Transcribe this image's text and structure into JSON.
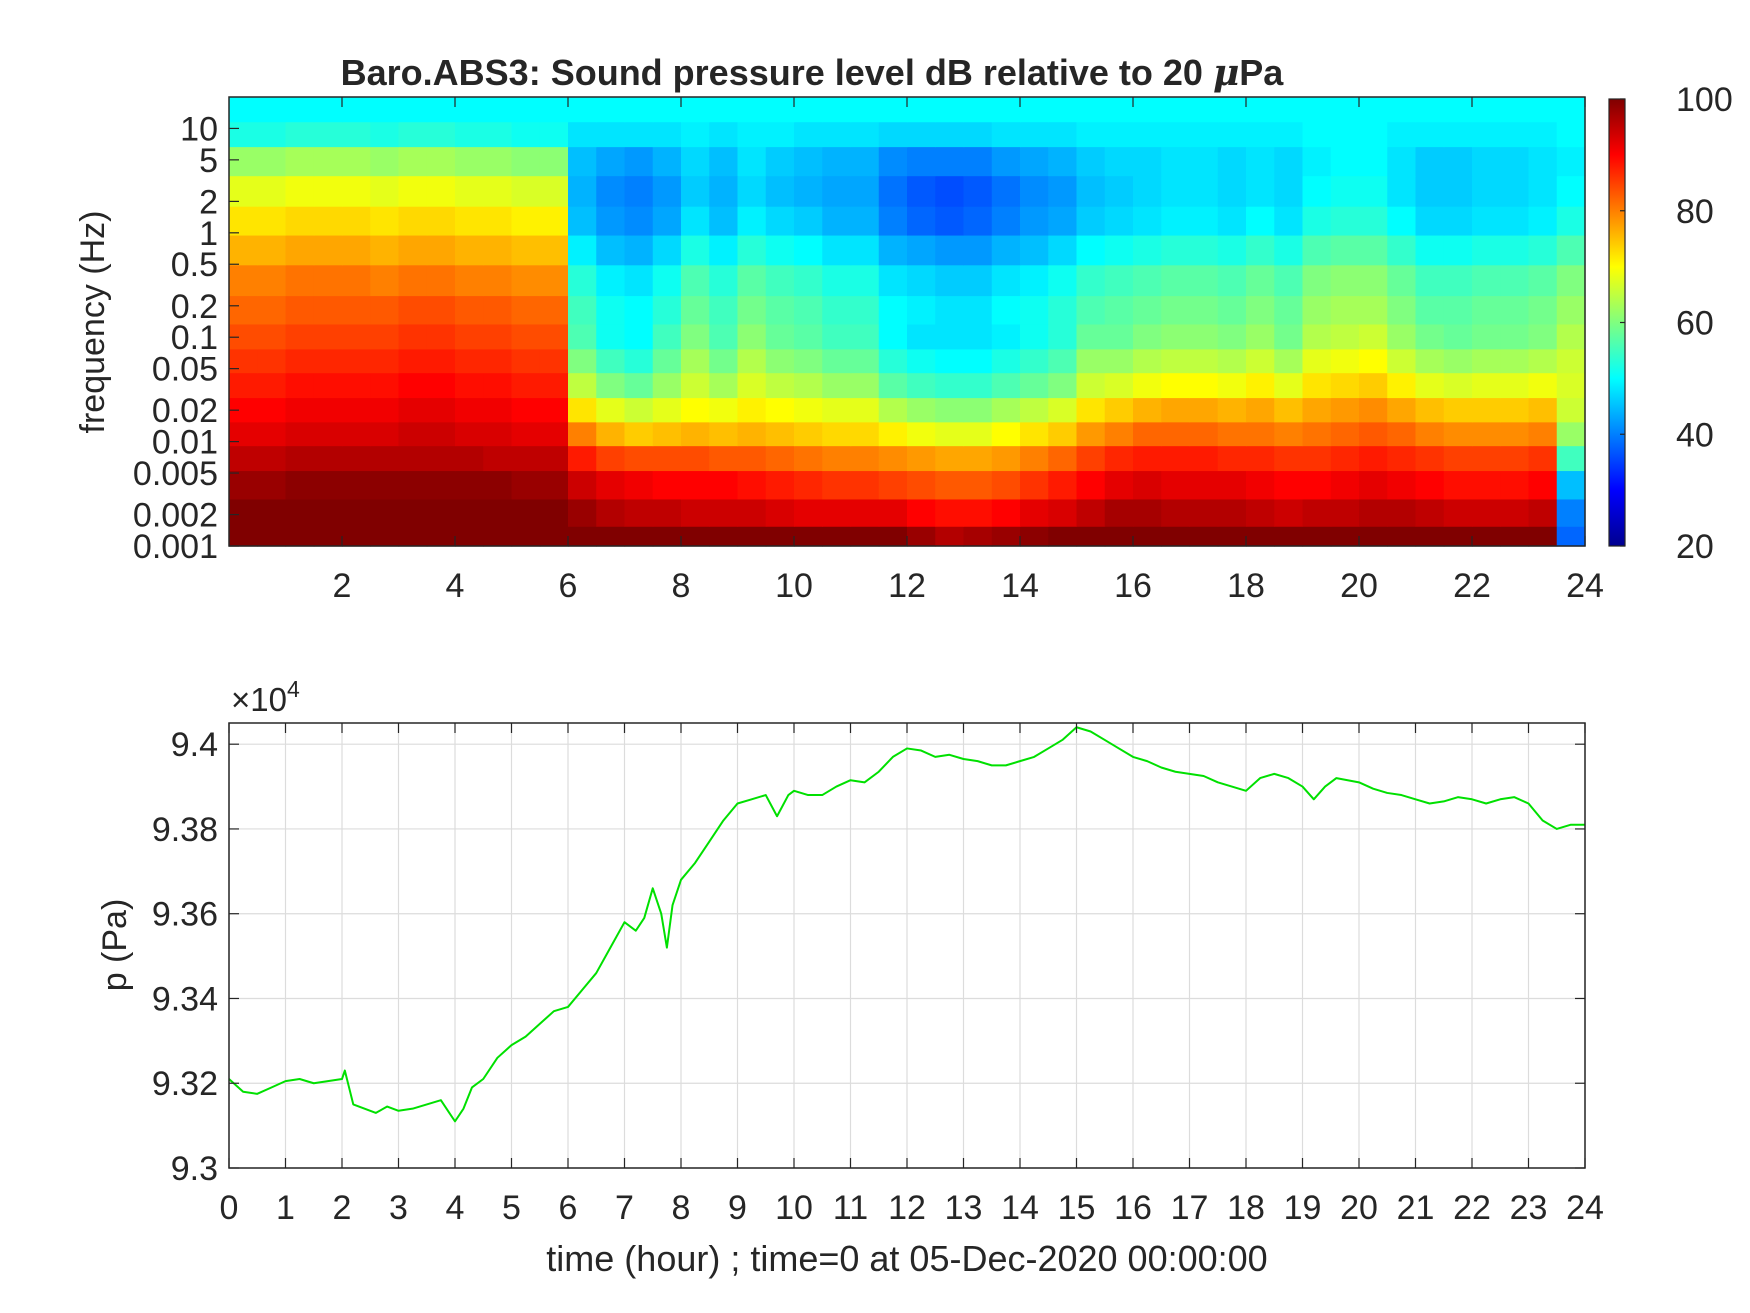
{
  "chart_data": [
    {
      "type": "heatmap",
      "title": "Baro.ABS3: Sound pressure level dB relative to 20 ",
      "title_symbol": "μ",
      "title_suffix": "Pa",
      "xlabel": "",
      "ylabel": "frequency (Hz)",
      "xlim": [
        0,
        24
      ],
      "ylim": [
        0.001,
        20
      ],
      "yscale": "log",
      "x_ticks": [
        2,
        4,
        6,
        8,
        10,
        12,
        14,
        16,
        18,
        20,
        22,
        24
      ],
      "y_ticks": [
        {
          "value": 0.001,
          "label": "0.001"
        },
        {
          "value": 0.002,
          "label": "0.002"
        },
        {
          "value": 0.005,
          "label": "0.005"
        },
        {
          "value": 0.01,
          "label": "0.01"
        },
        {
          "value": 0.02,
          "label": "0.02"
        },
        {
          "value": 0.05,
          "label": "0.05"
        },
        {
          "value": 0.1,
          "label": "0.1"
        },
        {
          "value": 0.2,
          "label": "0.2"
        },
        {
          "value": 0.5,
          "label": "0.5"
        },
        {
          "value": 1,
          "label": "1"
        },
        {
          "value": 2,
          "label": "2"
        },
        {
          "value": 5,
          "label": "5"
        },
        {
          "value": 10,
          "label": "10"
        }
      ],
      "colormap": "jet",
      "clim": [
        20,
        100
      ],
      "colorbar_ticks": [
        20,
        40,
        60,
        80,
        100
      ],
      "frequency_rows_hz": [
        0.0012,
        0.002,
        0.004,
        0.007,
        0.012,
        0.02,
        0.035,
        0.06,
        0.1,
        0.18,
        0.35,
        0.7,
        1.3,
        2.5,
        5,
        9,
        15
      ],
      "time_columns_hour": [
        0.25,
        0.75,
        1.25,
        1.75,
        2.25,
        2.75,
        3.25,
        3.75,
        4.25,
        4.75,
        5.25,
        5.75,
        6.25,
        6.75,
        7.25,
        7.75,
        8.25,
        8.75,
        9.25,
        9.75,
        10.25,
        10.75,
        11.25,
        11.75,
        12.25,
        12.75,
        13.25,
        13.75,
        14.25,
        14.75,
        15.25,
        15.75,
        16.25,
        16.75,
        17.25,
        17.75,
        18.25,
        18.75,
        19.25,
        19.75,
        20.25,
        20.75,
        21.25,
        21.75,
        22.25,
        22.75,
        23.25,
        23.75
      ],
      "spl_db": [
        [
          100,
          100,
          100,
          100,
          100,
          100,
          100,
          100,
          100,
          100,
          100,
          100,
          100,
          100,
          100,
          100,
          100,
          100,
          100,
          100,
          100,
          100,
          100,
          100,
          98,
          96,
          97,
          98,
          99,
          100,
          100,
          100,
          100,
          100,
          100,
          100,
          100,
          100,
          100,
          100,
          100,
          100,
          100,
          100,
          100,
          100,
          100,
          38
        ],
        [
          100,
          100,
          100,
          100,
          100,
          100,
          100,
          100,
          100,
          100,
          100,
          100,
          98,
          96,
          95,
          95,
          94,
          94,
          94,
          93,
          92,
          92,
          92,
          92,
          90,
          89,
          89,
          90,
          92,
          93,
          95,
          97,
          97,
          96,
          96,
          96,
          95,
          94,
          95,
          95,
          96,
          96,
          95,
          94,
          94,
          94,
          95,
          40
        ],
        [
          98,
          98,
          99,
          99,
          99,
          99,
          99,
          99,
          99,
          99,
          98,
          98,
          94,
          92,
          91,
          90,
          90,
          90,
          89,
          88,
          87,
          86,
          86,
          85,
          84,
          83,
          83,
          84,
          86,
          88,
          90,
          92,
          93,
          92,
          92,
          92,
          91,
          90,
          90,
          91,
          92,
          91,
          90,
          89,
          89,
          89,
          90,
          45
        ],
        [
          95,
          95,
          96,
          96,
          96,
          96,
          96,
          96,
          96,
          95,
          95,
          95,
          88,
          85,
          84,
          84,
          84,
          83,
          83,
          82,
          81,
          80,
          80,
          79,
          78,
          77,
          77,
          78,
          80,
          82,
          85,
          87,
          88,
          88,
          88,
          87,
          87,
          86,
          86,
          87,
          88,
          87,
          86,
          85,
          85,
          85,
          86,
          55
        ],
        [
          92,
          92,
          93,
          93,
          93,
          93,
          94,
          94,
          93,
          93,
          92,
          92,
          80,
          76,
          74,
          75,
          76,
          75,
          76,
          75,
          74,
          73,
          73,
          71,
          69,
          68,
          68,
          70,
          72,
          74,
          78,
          80,
          82,
          82,
          82,
          81,
          81,
          80,
          81,
          82,
          83,
          82,
          80,
          79,
          79,
          79,
          80,
          62
        ],
        [
          90,
          90,
          91,
          91,
          91,
          91,
          92,
          92,
          91,
          91,
          90,
          90,
          72,
          68,
          66,
          68,
          70,
          69,
          71,
          70,
          69,
          68,
          68,
          64,
          62,
          61,
          61,
          63,
          65,
          67,
          72,
          74,
          76,
          77,
          77,
          76,
          77,
          75,
          77,
          78,
          79,
          77,
          75,
          74,
          74,
          74,
          75,
          66
        ],
        [
          88,
          88,
          89,
          89,
          89,
          89,
          90,
          90,
          89,
          89,
          88,
          88,
          65,
          60,
          58,
          62,
          66,
          63,
          67,
          65,
          64,
          62,
          62,
          57,
          55,
          54,
          54,
          56,
          58,
          60,
          66,
          67,
          69,
          70,
          70,
          69,
          71,
          68,
          72,
          73,
          74,
          71,
          68,
          67,
          68,
          68,
          69,
          67
        ],
        [
          86,
          86,
          87,
          87,
          87,
          87,
          88,
          88,
          87,
          87,
          86,
          86,
          60,
          55,
          53,
          58,
          63,
          59,
          64,
          61,
          60,
          58,
          58,
          53,
          51,
          50,
          50,
          52,
          54,
          56,
          62,
          62,
          64,
          65,
          65,
          64,
          66,
          63,
          68,
          69,
          70,
          66,
          63,
          62,
          63,
          63,
          64,
          66
        ],
        [
          84,
          84,
          85,
          85,
          85,
          85,
          86,
          86,
          85,
          85,
          84,
          84,
          56,
          51,
          50,
          55,
          60,
          56,
          61,
          58,
          57,
          55,
          55,
          50,
          48,
          48,
          48,
          49,
          51,
          53,
          58,
          58,
          60,
          61,
          61,
          60,
          62,
          59,
          64,
          65,
          66,
          62,
          59,
          58,
          59,
          59,
          60,
          64
        ],
        [
          82,
          82,
          83,
          83,
          83,
          83,
          84,
          84,
          83,
          83,
          82,
          82,
          55,
          51,
          50,
          53,
          58,
          55,
          59,
          57,
          56,
          54,
          54,
          50,
          49,
          48,
          48,
          50,
          51,
          53,
          56,
          57,
          58,
          59,
          59,
          58,
          60,
          58,
          62,
          63,
          63,
          60,
          57,
          57,
          58,
          58,
          59,
          62
        ],
        [
          80,
          80,
          81,
          81,
          81,
          80,
          81,
          81,
          80,
          80,
          79,
          79,
          53,
          49,
          48,
          51,
          56,
          53,
          57,
          55,
          54,
          52,
          52,
          48,
          47,
          46,
          46,
          48,
          49,
          51,
          54,
          55,
          56,
          57,
          57,
          56,
          58,
          56,
          60,
          61,
          61,
          58,
          55,
          55,
          56,
          56,
          57,
          60
        ],
        [
          76,
          76,
          77,
          77,
          77,
          76,
          77,
          77,
          76,
          76,
          75,
          75,
          49,
          45,
          44,
          47,
          52,
          49,
          53,
          51,
          50,
          48,
          48,
          44,
          43,
          42,
          42,
          44,
          45,
          47,
          50,
          51,
          52,
          53,
          53,
          52,
          54,
          52,
          56,
          57,
          57,
          54,
          51,
          51,
          52,
          52,
          53,
          56
        ],
        [
          72,
          72,
          73,
          73,
          73,
          72,
          73,
          73,
          72,
          72,
          71,
          71,
          45,
          42,
          41,
          43,
          48,
          45,
          49,
          47,
          46,
          44,
          44,
          40,
          38,
          37,
          38,
          40,
          42,
          43,
          46,
          47,
          48,
          49,
          49,
          48,
          50,
          48,
          52,
          53,
          53,
          50,
          47,
          47,
          48,
          48,
          49,
          52
        ],
        [
          68,
          68,
          69,
          69,
          69,
          68,
          69,
          69,
          68,
          68,
          67,
          67,
          44,
          41,
          40,
          42,
          46,
          44,
          47,
          45,
          44,
          43,
          43,
          39,
          37,
          36,
          37,
          39,
          41,
          42,
          45,
          46,
          47,
          48,
          48,
          47,
          48,
          47,
          50,
          51,
          51,
          48,
          46,
          46,
          47,
          47,
          48,
          50
        ],
        [
          62,
          62,
          63,
          63,
          63,
          62,
          63,
          63,
          62,
          62,
          61,
          61,
          45,
          43,
          42,
          44,
          47,
          45,
          48,
          46,
          45,
          44,
          44,
          41,
          40,
          40,
          40,
          42,
          43,
          44,
          46,
          47,
          47,
          48,
          48,
          47,
          48,
          47,
          49,
          50,
          50,
          48,
          46,
          46,
          47,
          47,
          48,
          49
        ],
        [
          52,
          52,
          53,
          53,
          53,
          52,
          53,
          53,
          52,
          52,
          51,
          51,
          48,
          48,
          48,
          48,
          49,
          48,
          49,
          49,
          48,
          48,
          48,
          47,
          47,
          47,
          47,
          48,
          48,
          48,
          49,
          49,
          49,
          49,
          49,
          49,
          49,
          49,
          50,
          50,
          50,
          49,
          49,
          49,
          49,
          49,
          49,
          50
        ],
        [
          50,
          50,
          50,
          50,
          50,
          50,
          50,
          50,
          50,
          50,
          50,
          50,
          50,
          50,
          50,
          50,
          50,
          50,
          50,
          50,
          50,
          50,
          50,
          50,
          50,
          50,
          50,
          50,
          50,
          50,
          50,
          50,
          50,
          50,
          50,
          50,
          50,
          50,
          50,
          50,
          50,
          50,
          50,
          50,
          50,
          50,
          50,
          50
        ]
      ]
    },
    {
      "type": "line",
      "title": "",
      "xlabel": "time (hour) ; time=0 at 05-Dec-2020 00:00:00",
      "ylabel": "p (Pa)",
      "y_exponent_label": "×10",
      "y_exponent_power": "4",
      "xlim": [
        0,
        24
      ],
      "ylim": [
        93000,
        94050
      ],
      "grid": true,
      "x_ticks": [
        0,
        1,
        2,
        3,
        4,
        5,
        6,
        7,
        8,
        9,
        10,
        11,
        12,
        13,
        14,
        15,
        16,
        17,
        18,
        19,
        20,
        21,
        22,
        23,
        24
      ],
      "y_ticks": [
        {
          "value": 93000,
          "label": "9.3"
        },
        {
          "value": 93200,
          "label": "9.32"
        },
        {
          "value": 93400,
          "label": "9.34"
        },
        {
          "value": 93600,
          "label": "9.36"
        },
        {
          "value": 93800,
          "label": "9.38"
        },
        {
          "value": 94000,
          "label": "9.4"
        }
      ],
      "series": [
        {
          "color": "#00e000",
          "x": [
            0,
            0.25,
            0.5,
            0.75,
            1,
            1.25,
            1.5,
            1.75,
            2,
            2.05,
            2.2,
            2.4,
            2.6,
            2.8,
            3,
            3.25,
            3.5,
            3.75,
            3.9,
            4,
            4.15,
            4.3,
            4.5,
            4.75,
            5,
            5.25,
            5.5,
            5.75,
            6,
            6.25,
            6.5,
            6.75,
            7,
            7.2,
            7.35,
            7.5,
            7.65,
            7.75,
            7.85,
            8,
            8.25,
            8.5,
            8.75,
            9,
            9.25,
            9.5,
            9.7,
            9.9,
            10,
            10.25,
            10.5,
            10.75,
            11,
            11.25,
            11.5,
            11.75,
            12,
            12.25,
            12.5,
            12.75,
            13,
            13.25,
            13.5,
            13.75,
            14,
            14.25,
            14.5,
            14.75,
            15,
            15.25,
            15.5,
            15.75,
            16,
            16.25,
            16.5,
            16.75,
            17,
            17.25,
            17.5,
            17.75,
            18,
            18.25,
            18.5,
            18.75,
            19,
            19.2,
            19.4,
            19.6,
            19.8,
            20,
            20.25,
            20.5,
            20.75,
            21,
            21.25,
            21.5,
            21.75,
            22,
            22.25,
            22.5,
            22.75,
            23,
            23.25,
            23.5,
            23.75,
            24
          ],
          "y": [
            93210,
            93180,
            93175,
            93190,
            93205,
            93210,
            93200,
            93205,
            93210,
            93230,
            93150,
            93140,
            93130,
            93145,
            93135,
            93140,
            93150,
            93160,
            93130,
            93110,
            93140,
            93190,
            93210,
            93260,
            93290,
            93310,
            93340,
            93370,
            93380,
            93420,
            93460,
            93520,
            93580,
            93560,
            93590,
            93660,
            93600,
            93520,
            93620,
            93680,
            93720,
            93770,
            93820,
            93860,
            93870,
            93880,
            93830,
            93880,
            93890,
            93880,
            93880,
            93900,
            93915,
            93910,
            93935,
            93970,
            93990,
            93985,
            93970,
            93975,
            93965,
            93960,
            93950,
            93950,
            93960,
            93970,
            93990,
            94010,
            94040,
            94030,
            94010,
            93990,
            93970,
            93960,
            93945,
            93935,
            93930,
            93925,
            93910,
            93900,
            93890,
            93920,
            93930,
            93920,
            93900,
            93870,
            93900,
            93920,
            93915,
            93910,
            93895,
            93885,
            93880,
            93870,
            93860,
            93865,
            93875,
            93870,
            93860,
            93870,
            93875,
            93860,
            93820,
            93800,
            93810,
            93810
          ]
        }
      ]
    }
  ]
}
